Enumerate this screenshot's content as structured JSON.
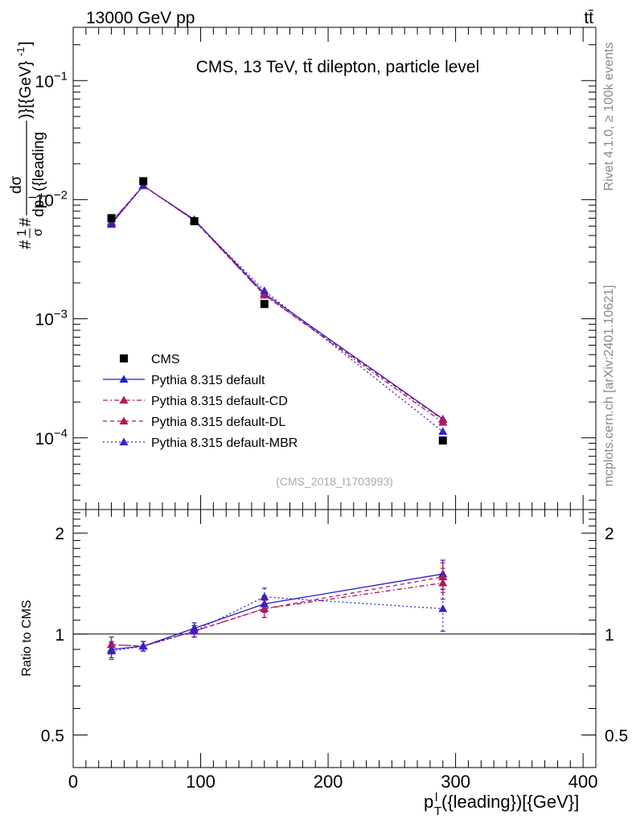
{
  "header": {
    "left": "13000 GeV pp",
    "right": "tt̄"
  },
  "side_labels": {
    "rivet": "Rivet 4.1.0, ≥ 100k events",
    "mcplots": "mcplots.cern.ch [arXiv:2401.10621]"
  },
  "chart_data": {
    "type": "line",
    "title": "CMS, 13 TeV, tt̄ dilepton, particle level",
    "analysis_tag": "(CMS_2018_I1703993)",
    "ylabel_main": "#1/σ# dσ / dp_T^l({leading}) [(GeV)^-1]",
    "ylabel_ratio": "Ratio to CMS",
    "xlabel": "p_T^l({leading})[{GeV}]",
    "xlim": [
      0,
      410
    ],
    "ylim_main": [
      2.5e-05,
      0.28
    ],
    "ylim_ratio": [
      0.4,
      2.35
    ],
    "x_ticks": [
      0,
      100,
      200,
      300,
      400
    ],
    "x_tick_labels": [
      "0",
      "100",
      "200",
      "300",
      "400"
    ],
    "y_ticks_main": [
      0.1,
      0.01,
      0.001,
      0.0001
    ],
    "y_tick_labels_main": [
      {
        "base": "10",
        "exp": "−1"
      },
      {
        "base": "10",
        "exp": "−2"
      },
      {
        "base": "10",
        "exp": "−3"
      },
      {
        "base": "10",
        "exp": "−4"
      }
    ],
    "y_ticks_ratio": [
      0.5,
      1,
      2
    ],
    "y_tick_labels_ratio": [
      "0.5",
      "1",
      "2"
    ],
    "x": [
      30,
      55,
      95,
      150,
      290
    ],
    "data": {
      "name": "CMS",
      "values": [
        0.007,
        0.0143,
        0.0066,
        0.00133,
        9.5e-05
      ],
      "color": "#000000"
    },
    "series": [
      {
        "name": "Pythia 8.315 default",
        "color": "#1f1fc8",
        "dash": "",
        "values": [
          0.0063,
          0.0131,
          0.0068,
          0.00163,
          0.000144
        ],
        "ratio": [
          0.9,
          0.92,
          1.04,
          1.23,
          1.51
        ],
        "ratio_err": [
          0.05,
          0.03,
          0.04,
          0.07,
          0.15
        ]
      },
      {
        "name": "Pythia 8.315 default-CD",
        "color": "#b0185a",
        "dash": "6,3,2,3",
        "values": [
          0.0065,
          0.0131,
          0.0067,
          0.00158,
          0.000135
        ],
        "ratio": [
          0.93,
          0.92,
          1.02,
          1.19,
          1.42
        ],
        "ratio_err": [
          0.05,
          0.03,
          0.04,
          0.07,
          0.15
        ]
      },
      {
        "name": "Pythia 8.315 default-DL",
        "color": "#b0185a",
        "dash": "5,4",
        "values": [
          0.0065,
          0.0131,
          0.0067,
          0.00158,
          0.000142
        ],
        "ratio": [
          0.93,
          0.92,
          1.02,
          1.19,
          1.48
        ],
        "ratio_err": [
          0.05,
          0.03,
          0.04,
          0.07,
          0.15
        ]
      },
      {
        "name": "Pythia 8.315 default-MBR",
        "color": "#3c1ec8",
        "dash": "2,3",
        "values": [
          0.0062,
          0.0131,
          0.0067,
          0.00172,
          0.000113
        ],
        "ratio": [
          0.89,
          0.92,
          1.02,
          1.29,
          1.19
        ],
        "ratio_err": [
          0.05,
          0.03,
          0.04,
          0.08,
          0.17
        ]
      }
    ],
    "legend_position": "lower-left"
  }
}
